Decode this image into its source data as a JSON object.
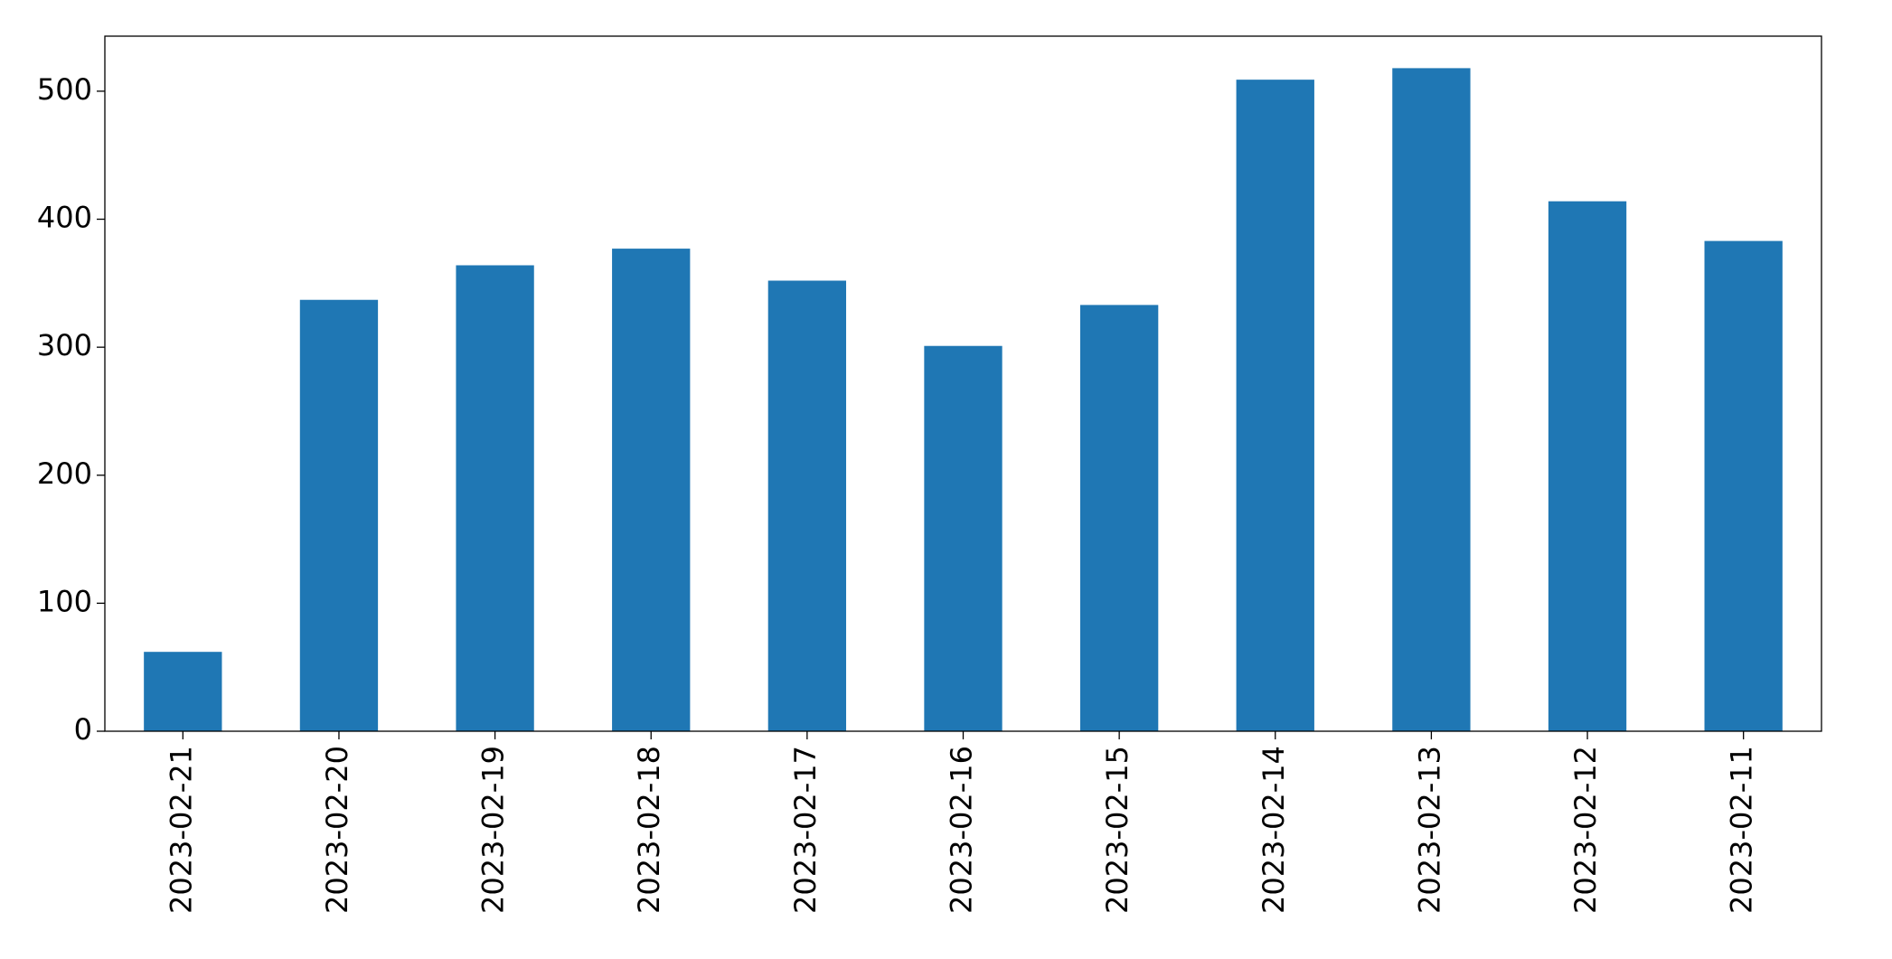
{
  "chart_data": {
    "type": "bar",
    "categories": [
      "2023-02-21",
      "2023-02-20",
      "2023-02-19",
      "2023-02-18",
      "2023-02-17",
      "2023-02-16",
      "2023-02-15",
      "2023-02-14",
      "2023-02-13",
      "2023-02-12",
      "2023-02-11"
    ],
    "values": [
      62,
      337,
      364,
      377,
      352,
      301,
      333,
      509,
      518,
      414,
      383
    ],
    "color": "#1f77b4",
    "ylim": [
      0,
      543
    ],
    "yticks": [
      0,
      100,
      200,
      300,
      400,
      500
    ],
    "grid": false
  }
}
